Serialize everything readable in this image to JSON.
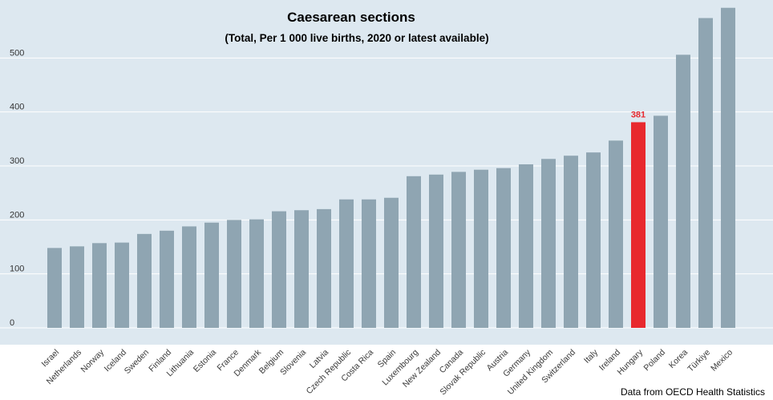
{
  "chart_data": {
    "type": "bar",
    "title": "Caesarean sections",
    "subtitle": "(Total, Per 1 000 live births, 2020 or latest available)",
    "categories": [
      "Israel",
      "Netherlands",
      "Norway",
      "Iceland",
      "Sweden",
      "Finland",
      "Lithuania",
      "Estonia",
      "France",
      "Denmark",
      "Belgium",
      "Slovenia",
      "Latvia",
      "Czech Republic",
      "Costa Rica",
      "Spain",
      "Luxembourg",
      "New Zealand",
      "Canada",
      "Slovak Republic",
      "Austria",
      "Germany",
      "United Kingdom",
      "Switzerland",
      "Italy",
      "Ireland",
      "Hungary",
      "Poland",
      "Korea",
      "Türkiye",
      "Mexico"
    ],
    "values": [
      148,
      151,
      157,
      158,
      174,
      180,
      188,
      195,
      200,
      201,
      216,
      218,
      220,
      238,
      238,
      241,
      281,
      284,
      289,
      293,
      296,
      303,
      313,
      319,
      325,
      347,
      381,
      393,
      506,
      574,
      593
    ],
    "highlight": {
      "category": "Hungary",
      "label": "381",
      "color": "#e8292e"
    },
    "ylim": [
      0,
      600
    ],
    "yticks": [
      "0",
      "100",
      "200",
      "300",
      "400",
      "500"
    ],
    "ytick_values": [
      0,
      100,
      200,
      300,
      400,
      500
    ],
    "grid": true,
    "colors": {
      "bar": "#8fa5b2",
      "highlight": "#e8292e",
      "plot_bg": "#dde8f0",
      "grid": "#ffffff"
    }
  },
  "source": "Data from OECD Health Statistics"
}
